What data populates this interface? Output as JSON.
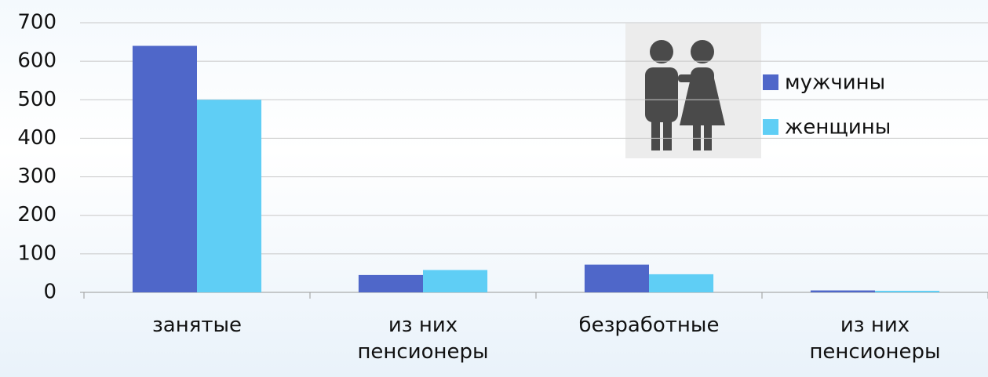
{
  "chart_data": {
    "type": "bar",
    "categories": [
      "занятые",
      "из них пенсионеры",
      "безработные",
      "из них пенсионеры"
    ],
    "series": [
      {
        "name": "мужчины",
        "color": "#4f67c9",
        "values": [
          640,
          45,
          72,
          5
        ]
      },
      {
        "name": "женщины",
        "color": "#5fcef5",
        "values": [
          500,
          58,
          47,
          4
        ]
      }
    ],
    "ylim": [
      0,
      700
    ],
    "yticks": [
      0,
      100,
      200,
      300,
      400,
      500,
      600,
      700
    ],
    "grid": true
  }
}
